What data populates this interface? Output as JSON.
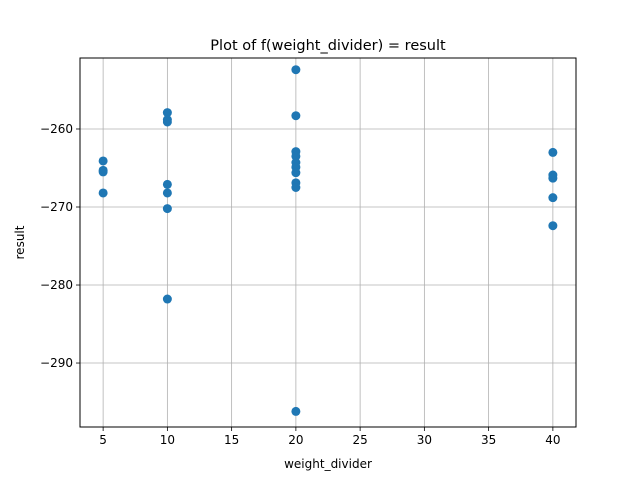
{
  "chart_data": {
    "type": "scatter",
    "title": "Plot of f(weight_divider) = result",
    "xlabel": "weight_divider",
    "ylabel": "result",
    "xlim": [
      3.2,
      41.8
    ],
    "ylim": [
      -298.2,
      -250.9
    ],
    "xticks": [
      5,
      10,
      15,
      20,
      25,
      30,
      35,
      40
    ],
    "yticks": [
      -290,
      -280,
      -270,
      -260
    ],
    "ytick_labels": [
      "−290",
      "−280",
      "−270",
      "−260"
    ],
    "grid": true,
    "marker_color": "#1f77b4",
    "points": [
      {
        "x": 5,
        "y": -264.1
      },
      {
        "x": 5,
        "y": -265.3
      },
      {
        "x": 5,
        "y": -265.5
      },
      {
        "x": 5,
        "y": -268.2
      },
      {
        "x": 10,
        "y": -257.9
      },
      {
        "x": 10,
        "y": -258.8
      },
      {
        "x": 10,
        "y": -259.1
      },
      {
        "x": 10,
        "y": -267.1
      },
      {
        "x": 10,
        "y": -268.2
      },
      {
        "x": 10,
        "y": -270.2
      },
      {
        "x": 10,
        "y": -281.8
      },
      {
        "x": 20,
        "y": -252.4
      },
      {
        "x": 20,
        "y": -258.3
      },
      {
        "x": 20,
        "y": -262.9
      },
      {
        "x": 20,
        "y": -263.5
      },
      {
        "x": 20,
        "y": -264.3
      },
      {
        "x": 20,
        "y": -264.9
      },
      {
        "x": 20,
        "y": -265.6
      },
      {
        "x": 20,
        "y": -266.9
      },
      {
        "x": 20,
        "y": -267.5
      },
      {
        "x": 20,
        "y": -296.2
      },
      {
        "x": 40,
        "y": -263.0
      },
      {
        "x": 40,
        "y": -265.9
      },
      {
        "x": 40,
        "y": -266.3
      },
      {
        "x": 40,
        "y": -268.8
      },
      {
        "x": 40,
        "y": -272.4
      }
    ]
  }
}
